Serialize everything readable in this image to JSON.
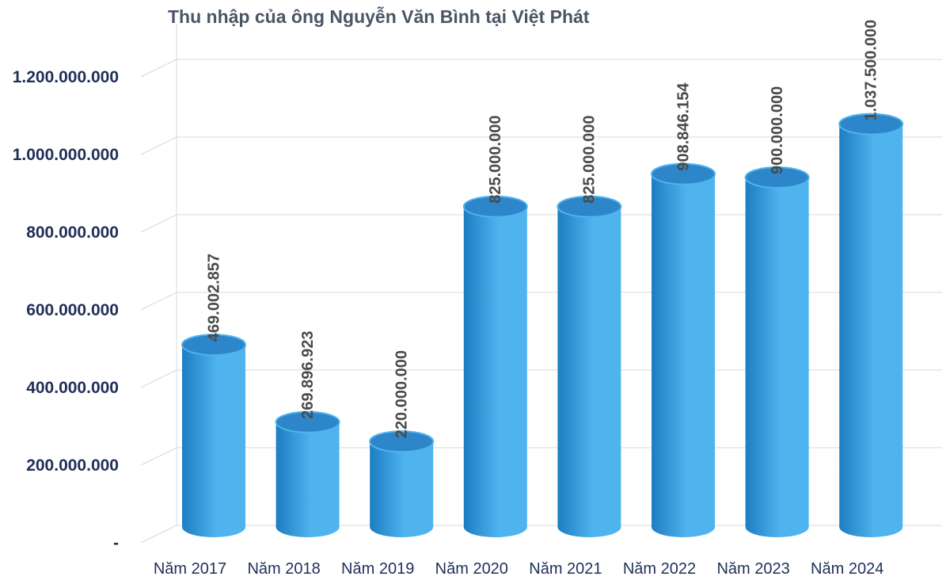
{
  "chart_data": {
    "type": "bar",
    "title": "Thu nhập của ông Nguyễn Văn Bình tại Việt Phát",
    "categories": [
      "Năm 2017",
      "Năm 2018",
      "Năm 2019",
      "Năm 2020",
      "Năm 2021",
      "Năm 2022",
      "Năm 2023",
      "Năm 2024"
    ],
    "values": [
      469002857,
      269896923,
      220000000,
      825000000,
      825000000,
      908846154,
      900000000,
      1037500000
    ],
    "value_labels": [
      "469.002.857",
      "269.896.923",
      "220.000.000",
      "825.000.000",
      "825.000.000",
      "908.846.154",
      "900.000.000",
      "1.037.500.000"
    ],
    "yticks": [
      "-",
      "200.000.000",
      "400.000.000",
      "600.000.000",
      "800.000.000",
      "1.000.000.000",
      "1.200.000.000"
    ],
    "ylim": [
      0,
      1200000000
    ],
    "xlabel": "",
    "ylabel": "",
    "grid": true,
    "bar_style": "3d-cylinder",
    "colors": {
      "bar": "#4fb3ee",
      "bar_dark": "#1c7dc2",
      "bar_top": "#2c86c9",
      "grid": "#d9d9d9",
      "axis_text": "#1f2f57",
      "title": "#4a5565"
    }
  }
}
